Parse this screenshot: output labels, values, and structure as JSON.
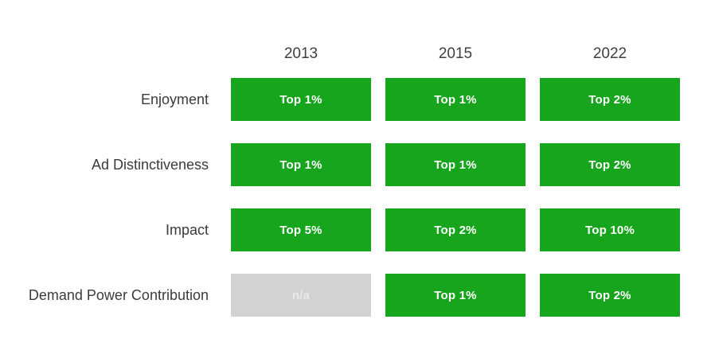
{
  "colors": {
    "page_bg": "#ffffff",
    "cell_green": "#18a51e",
    "cell_gray": "#d2d2d2",
    "cell_text": "#ffffff",
    "na_text": "#e9e9e9",
    "label_text": "#3b3b3b",
    "header_text": "#3f3f3f"
  },
  "table": {
    "columns": [
      "2013",
      "2015",
      "2022"
    ],
    "rows": [
      {
        "label": "Enjoyment",
        "cells": [
          {
            "text": "Top 1%",
            "variant": "green"
          },
          {
            "text": "Top 1%",
            "variant": "green"
          },
          {
            "text": "Top 2%",
            "variant": "green"
          }
        ]
      },
      {
        "label": "Ad Distinctiveness",
        "cells": [
          {
            "text": "Top 1%",
            "variant": "green"
          },
          {
            "text": "Top 1%",
            "variant": "green"
          },
          {
            "text": "Top 2%",
            "variant": "green"
          }
        ]
      },
      {
        "label": "Impact",
        "cells": [
          {
            "text": "Top 5%",
            "variant": "green"
          },
          {
            "text": "Top 2%",
            "variant": "green"
          },
          {
            "text": "Top 10%",
            "variant": "green"
          }
        ]
      },
      {
        "label": "Demand Power Contribution",
        "cells": [
          {
            "text": "n/a",
            "variant": "na"
          },
          {
            "text": "Top 1%",
            "variant": "green"
          },
          {
            "text": "Top 2%",
            "variant": "green"
          }
        ]
      }
    ]
  },
  "chart_data": {
    "type": "table",
    "columns": [
      "2013",
      "2015",
      "2022"
    ],
    "row_labels": [
      "Enjoyment",
      "Ad Distinctiveness",
      "Impact",
      "Demand Power Contribution"
    ],
    "values": [
      [
        "Top 1%",
        "Top 1%",
        "Top 2%"
      ],
      [
        "Top 1%",
        "Top 1%",
        "Top 2%"
      ],
      [
        "Top 5%",
        "Top 2%",
        "Top 10%"
      ],
      [
        "n/a",
        "Top 1%",
        "Top 2%"
      ]
    ]
  }
}
